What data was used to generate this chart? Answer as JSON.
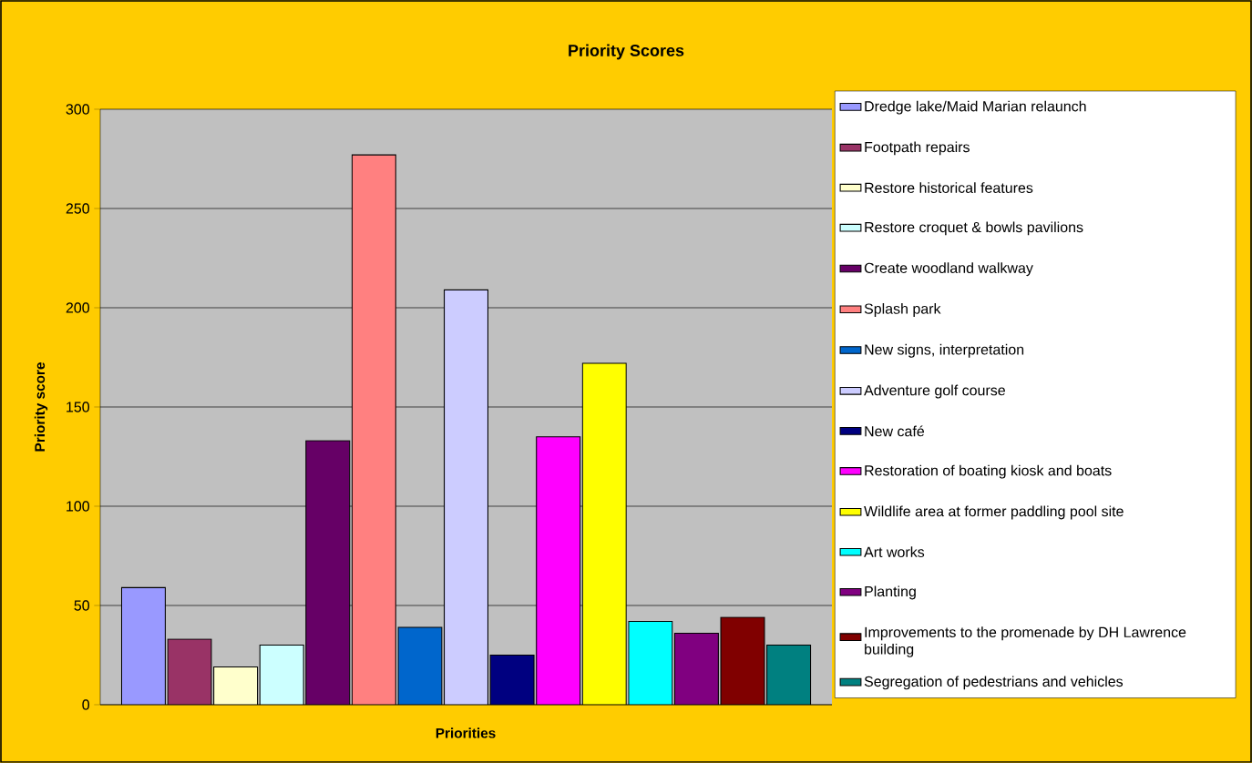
{
  "chart_data": {
    "type": "bar",
    "title": "Priority Scores",
    "xlabel": "Priorities",
    "ylabel": "Priority score",
    "categories": [
      null
    ],
    "series": [
      {
        "name": "Dredge lake/Maid Marian relaunch",
        "color": "#9999ff",
        "values": [
          59
        ]
      },
      {
        "name": "Footpath repairs",
        "color": "#993366",
        "values": [
          33
        ]
      },
      {
        "name": "Restore historical features",
        "color": "#ffffcc",
        "values": [
          19
        ]
      },
      {
        "name": "Restore croquet & bowls pavilions",
        "color": "#ccffff",
        "values": [
          30
        ]
      },
      {
        "name": "Create woodland walkway",
        "color": "#660066",
        "values": [
          133
        ]
      },
      {
        "name": "Splash park",
        "color": "#ff8080",
        "values": [
          277
        ]
      },
      {
        "name": "New signs, interpretation",
        "color": "#0066cc",
        "values": [
          39
        ]
      },
      {
        "name": "Adventure golf course",
        "color": "#ccccff",
        "values": [
          209
        ]
      },
      {
        "name": "New café",
        "color": "#000080",
        "values": [
          25
        ]
      },
      {
        "name": "Restoration of boating kiosk and boats",
        "color": "#ff00ff",
        "values": [
          135
        ]
      },
      {
        "name": "Wildlife area at former paddling pool site",
        "color": "#ffff00",
        "values": [
          172
        ]
      },
      {
        "name": "Art works",
        "color": "#00ffff",
        "values": [
          42
        ]
      },
      {
        "name": "Planting",
        "color": "#800080",
        "values": [
          36
        ]
      },
      {
        "name": "Improvements to the promenade by DH Lawrence building",
        "color": "#800000",
        "values": [
          44
        ]
      },
      {
        "name": "Segregation of pedestrians and vehicles",
        "color": "#008080",
        "values": [
          30
        ]
      }
    ],
    "ylim": [
      0,
      300
    ],
    "yticks": [
      0,
      50,
      100,
      150,
      200,
      250,
      300
    ],
    "grid": "y",
    "legend": "right"
  }
}
